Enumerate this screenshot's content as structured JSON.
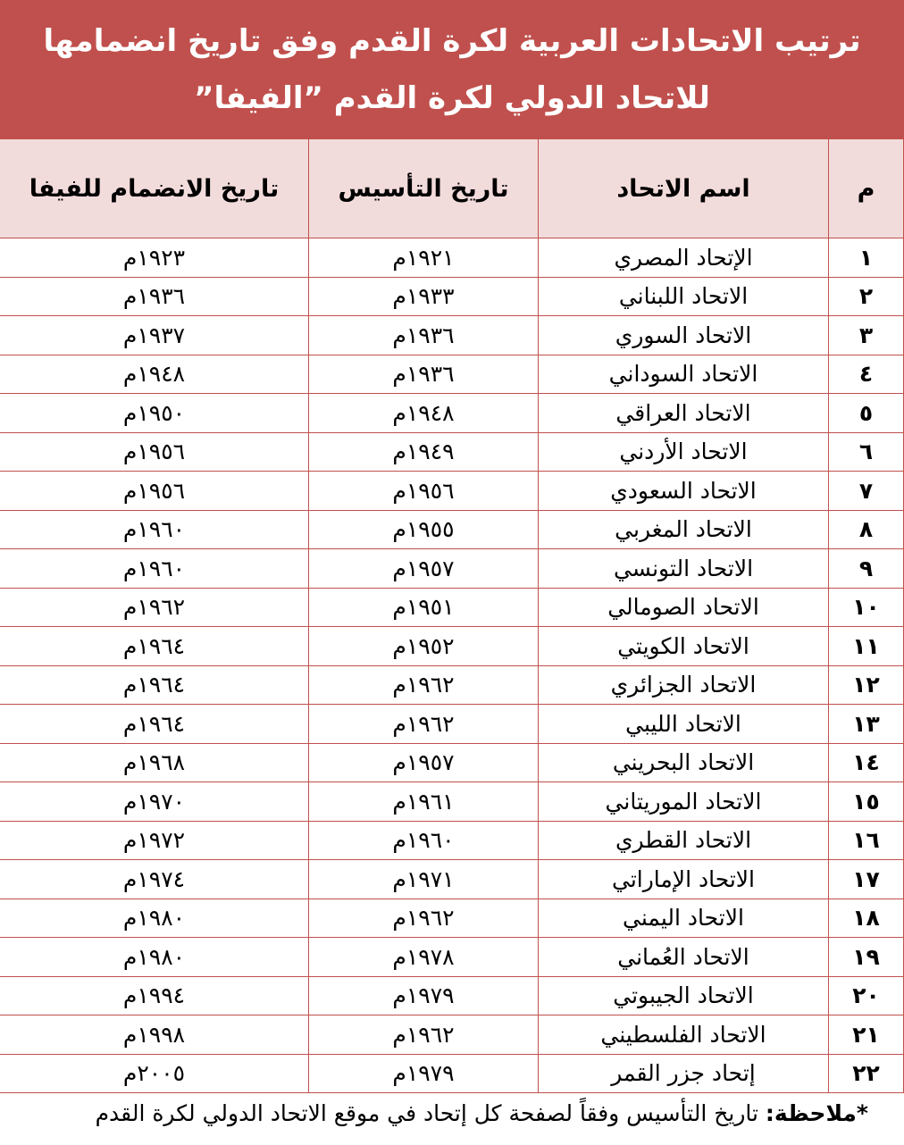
{
  "title": {
    "lines": [
      "ترتيب الاتحادات العربية لكرة القدم وفق تاريخ انضمامها",
      "للاتحاد الدولي لكرة القدم ”الفيفا”"
    ]
  },
  "table": {
    "header": [
      "م",
      "اسم الاتحاد",
      "تاريخ التأسيس",
      "تاريخ الانضمام للفيفا"
    ],
    "rows": [
      [
        "١",
        "الإتحاد المصري",
        "١٩٢١م",
        "١٩٢٣م"
      ],
      [
        "٢",
        "الاتحاد اللبناني",
        "١٩٣٣م",
        "١٩٣٦م"
      ],
      [
        "٣",
        "الاتحاد السوري",
        "١٩٣٦م",
        "١٩٣٧م"
      ],
      [
        "٤",
        "الاتحاد السوداني",
        "١٩٣٦م",
        "١٩٤٨م"
      ],
      [
        "٥",
        "الاتحاد العراقي",
        "١٩٤٨م",
        "١٩٥٠م"
      ],
      [
        "٦",
        "الاتحاد الأردني",
        "١٩٤٩م",
        "١٩٥٦م"
      ],
      [
        "٧",
        "الاتحاد السعودي",
        "١٩٥٦م",
        "١٩٥٦م"
      ],
      [
        "٨",
        "الاتحاد المغربي",
        "١٩٥٥م",
        "١٩٦٠م"
      ],
      [
        "٩",
        "الاتحاد التونسي",
        "١٩٥٧م",
        "١٩٦٠م"
      ],
      [
        "١٠",
        "الاتحاد الصومالي",
        "١٩٥١م",
        "١٩٦٢م"
      ],
      [
        "١١",
        "الاتحاد الكويتي",
        "١٩٥٢م",
        "١٩٦٤م"
      ],
      [
        "١٢",
        "الاتحاد الجزائري",
        "١٩٦٢م",
        "١٩٦٤م"
      ],
      [
        "١٣",
        "الاتحاد الليبي",
        "١٩٦٢م",
        "١٩٦٤م"
      ],
      [
        "١٤",
        "الاتحاد البحريني",
        "١٩٥٧م",
        "١٩٦٨م"
      ],
      [
        "١٥",
        "الاتحاد الموريتاني",
        "١٩٦١م",
        "١٩٧٠م"
      ],
      [
        "١٦",
        "الاتحاد القطري",
        "١٩٦٠م",
        "١٩٧٢م"
      ],
      [
        "١٧",
        "الاتحاد الإماراتي",
        "١٩٧١م",
        "١٩٧٤م"
      ],
      [
        "١٨",
        "الاتحاد اليمني",
        "١٩٦٢م",
        "١٩٨٠م"
      ],
      [
        "١٩",
        "الاتحاد العُماني",
        "١٩٧٨م",
        "١٩٨٠م"
      ],
      [
        "٢٠",
        "الاتحاد الجيبوتي",
        "١٩٧٩م",
        "١٩٩٤م"
      ],
      [
        "٢١",
        "الاتحاد الفلسطيني",
        "١٩٦٢م",
        "١٩٩٨م"
      ],
      [
        "٢٢",
        "إتحاد جزر القمر",
        "١٩٧٩م",
        "٢٠٠٥م"
      ]
    ]
  },
  "note": {
    "label": "*ملاحظة:",
    "text": "تاريخ التأسيس وفقاً لصفحة كل إتحاد في موقع الاتحاد الدولي لكرة القدم"
  }
}
